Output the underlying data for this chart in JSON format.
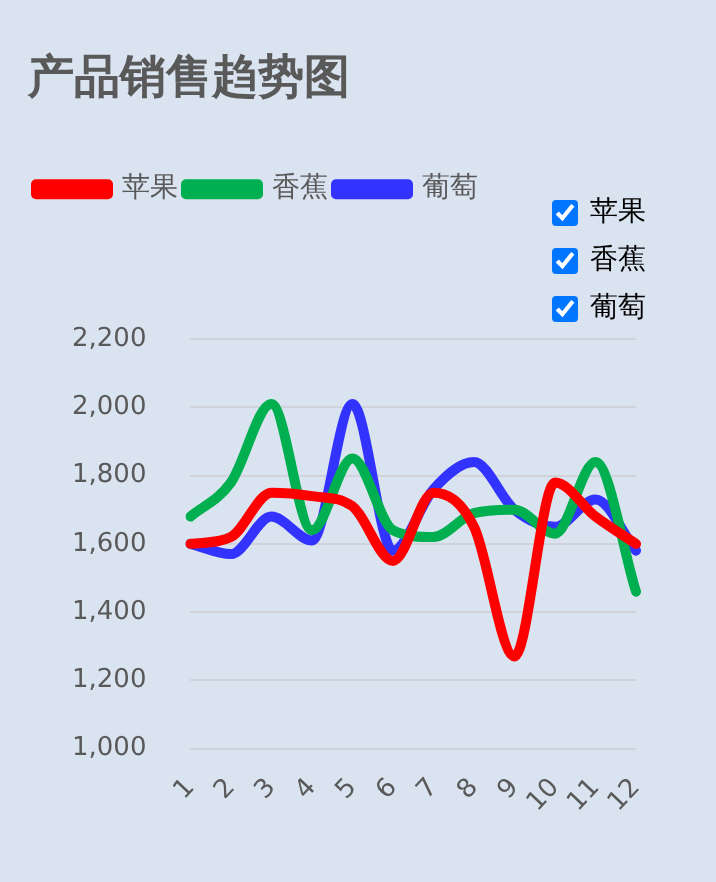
{
  "chart_data": {
    "type": "line",
    "title": "产品销售趋势图",
    "categories": [
      "1",
      "2",
      "3",
      "4",
      "5",
      "6",
      "7",
      "8",
      "9",
      "10",
      "11",
      "12"
    ],
    "series": [
      {
        "name": "苹果",
        "color": "#ff0000",
        "values": [
          1600,
          1620,
          1750,
          1740,
          1710,
          1550,
          1750,
          1650,
          1270,
          1780,
          1680,
          1600
        ]
      },
      {
        "name": "香蕉",
        "color": "#00b050",
        "values": [
          1680,
          1780,
          2010,
          1640,
          1850,
          1640,
          1620,
          1690,
          1700,
          1630,
          1840,
          1460
        ]
      },
      {
        "name": "葡萄",
        "color": "#3333ff",
        "values": [
          1600,
          1570,
          1680,
          1610,
          2010,
          1580,
          1760,
          1840,
          1700,
          1650,
          1730,
          1580
        ]
      }
    ],
    "ylim": [
      1000,
      2200
    ],
    "yticks": [
      {
        "value": 1000,
        "label": "1,000"
      },
      {
        "value": 1200,
        "label": "1,200"
      },
      {
        "value": 1400,
        "label": "1,400"
      },
      {
        "value": 1600,
        "label": "1,600"
      },
      {
        "value": 1800,
        "label": "1,800"
      },
      {
        "value": 2000,
        "label": "2,000"
      },
      {
        "value": 2200,
        "label": "2,200"
      }
    ],
    "grid": "y",
    "legend": "top left",
    "marker": "none",
    "line_style": "solid"
  }
}
